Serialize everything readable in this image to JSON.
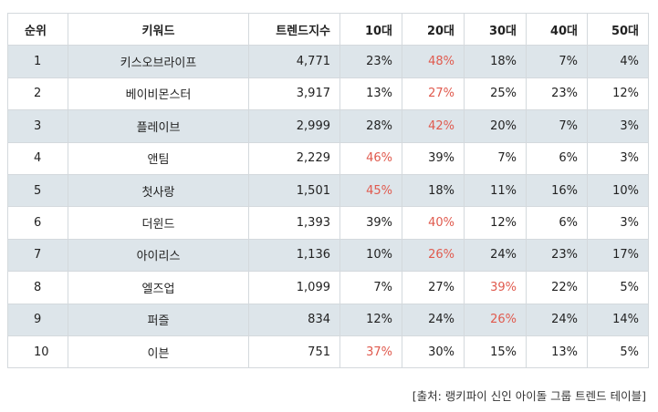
{
  "table": {
    "headers": [
      "순위",
      "키워드",
      "트렌드지수",
      "10대",
      "20대",
      "30대",
      "40대",
      "50대"
    ],
    "rows": [
      {
        "rank": "1",
        "keyword": "키스오브라이프",
        "index": "4,771",
        "a10": "23%",
        "a20": "48%",
        "a30": "18%",
        "a40": "7%",
        "a50": "4%",
        "highlight": "a20"
      },
      {
        "rank": "2",
        "keyword": "베이비몬스터",
        "index": "3,917",
        "a10": "13%",
        "a20": "27%",
        "a30": "25%",
        "a40": "23%",
        "a50": "12%",
        "highlight": "a20"
      },
      {
        "rank": "3",
        "keyword": "플레이브",
        "index": "2,999",
        "a10": "28%",
        "a20": "42%",
        "a30": "20%",
        "a40": "7%",
        "a50": "3%",
        "highlight": "a20"
      },
      {
        "rank": "4",
        "keyword": "앤팀",
        "index": "2,229",
        "a10": "46%",
        "a20": "39%",
        "a30": "7%",
        "a40": "6%",
        "a50": "3%",
        "highlight": "a10"
      },
      {
        "rank": "5",
        "keyword": "첫사랑",
        "index": "1,501",
        "a10": "45%",
        "a20": "18%",
        "a30": "11%",
        "a40": "16%",
        "a50": "10%",
        "highlight": "a10"
      },
      {
        "rank": "6",
        "keyword": "더윈드",
        "index": "1,393",
        "a10": "39%",
        "a20": "40%",
        "a30": "12%",
        "a40": "6%",
        "a50": "3%",
        "highlight": "a20"
      },
      {
        "rank": "7",
        "keyword": "아이리스",
        "index": "1,136",
        "a10": "10%",
        "a20": "26%",
        "a30": "24%",
        "a40": "23%",
        "a50": "17%",
        "highlight": "a20"
      },
      {
        "rank": "8",
        "keyword": "엘즈업",
        "index": "1,099",
        "a10": "7%",
        "a20": "27%",
        "a30": "39%",
        "a40": "22%",
        "a50": "5%",
        "highlight": "a30"
      },
      {
        "rank": "9",
        "keyword": "퍼즐",
        "index": "834",
        "a10": "12%",
        "a20": "24%",
        "a30": "26%",
        "a40": "24%",
        "a50": "14%",
        "highlight": "a30"
      },
      {
        "rank": "10",
        "keyword": "이븐",
        "index": "751",
        "a10": "37%",
        "a20": "30%",
        "a30": "15%",
        "a40": "13%",
        "a50": "5%",
        "highlight": "a10"
      }
    ]
  },
  "source": "[출처: 랭키파이 신인 아이돌 그룹 트렌드 테이블]",
  "colors": {
    "highlight": "#e05a4e",
    "shaded_row": "#dde5ea",
    "border": "#d4d9dd"
  }
}
